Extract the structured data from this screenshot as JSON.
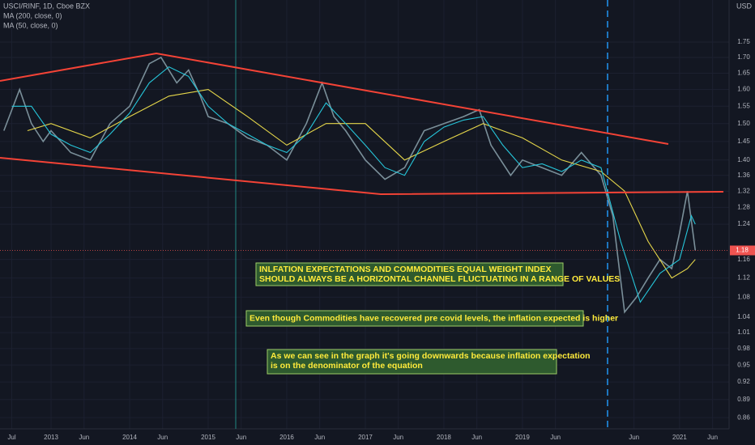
{
  "chart_data": {
    "type": "line",
    "title": "USCI/RINF, 1D, Cboe BZX",
    "y_unit": "USD",
    "log_scale": true,
    "grid": true,
    "xlim": [
      2012.35,
      2021.63
    ],
    "ylim": [
      0.842,
      1.895
    ],
    "xticks": [
      {
        "value": 2012.5,
        "label": "Jul"
      },
      {
        "value": 2013,
        "label": "2013"
      },
      {
        "value": 2013.42,
        "label": "Jun"
      },
      {
        "value": 2014,
        "label": "2014"
      },
      {
        "value": 2014.42,
        "label": "Jun"
      },
      {
        "value": 2015,
        "label": "2015"
      },
      {
        "value": 2015.42,
        "label": "Jun"
      },
      {
        "value": 2016,
        "label": "2016"
      },
      {
        "value": 2016.42,
        "label": "Jun"
      },
      {
        "value": 2017,
        "label": "2017"
      },
      {
        "value": 2017.42,
        "label": "Jun"
      },
      {
        "value": 2018,
        "label": "2018"
      },
      {
        "value": 2018.42,
        "label": "Jun"
      },
      {
        "value": 2019,
        "label": "2019"
      },
      {
        "value": 2019.42,
        "label": "Jun"
      },
      {
        "value": 2020.42,
        "label": "Jun"
      },
      {
        "value": 2021,
        "label": "2021"
      },
      {
        "value": 2021.42,
        "label": "Jun"
      }
    ],
    "yticks": [
      1.75,
      {
        "value": 1.7,
        "label": "1.70"
      },
      1.65,
      {
        "value": 1.6,
        "label": "1.60"
      },
      1.55,
      {
        "value": 1.5,
        "label": "1.50"
      },
      1.45,
      {
        "value": 1.4,
        "label": "1.40"
      },
      1.36,
      1.32,
      1.28,
      1.24,
      1.16,
      1.12,
      1.08,
      1.04,
      1.01,
      0.98,
      0.95,
      0.92,
      0.89,
      0.86
    ],
    "last_price": 1.18,
    "series": [
      {
        "name": "USCI/RINF, 1D, Cboe BZX",
        "color": "#7a8f99",
        "x": [
          2012.4,
          2012.6,
          2012.75,
          2012.9,
          2013.0,
          2013.25,
          2013.5,
          2013.75,
          2014.0,
          2014.25,
          2014.4,
          2014.6,
          2014.75,
          2014.9,
          2015.0,
          2015.25,
          2015.5,
          2015.75,
          2016.0,
          2016.25,
          2016.45,
          2016.6,
          2016.75,
          2017.0,
          2017.25,
          2017.5,
          2017.75,
          2018.0,
          2018.25,
          2018.45,
          2018.6,
          2018.85,
          2019.0,
          2019.25,
          2019.5,
          2019.75,
          2020.0,
          2020.15,
          2020.3,
          2020.45,
          2020.6,
          2020.75,
          2020.9,
          2021.0,
          2021.1,
          2021.2
        ],
        "values": [
          1.48,
          1.6,
          1.5,
          1.45,
          1.48,
          1.42,
          1.4,
          1.5,
          1.55,
          1.68,
          1.7,
          1.62,
          1.66,
          1.58,
          1.52,
          1.5,
          1.46,
          1.44,
          1.4,
          1.5,
          1.62,
          1.52,
          1.48,
          1.4,
          1.35,
          1.38,
          1.48,
          1.5,
          1.52,
          1.54,
          1.44,
          1.36,
          1.4,
          1.38,
          1.36,
          1.42,
          1.36,
          1.26,
          1.05,
          1.08,
          1.12,
          1.16,
          1.14,
          1.22,
          1.32,
          1.18
        ]
      },
      {
        "name": "MA (200, close, 0)",
        "color": "#e6d74a",
        "x": [
          2012.7,
          2013.0,
          2013.5,
          2014.0,
          2014.5,
          2015.0,
          2015.5,
          2016.0,
          2016.5,
          2017.0,
          2017.5,
          2018.0,
          2018.5,
          2019.0,
          2019.5,
          2020.0,
          2020.3,
          2020.6,
          2020.9,
          2021.1,
          2021.2
        ],
        "values": [
          1.48,
          1.5,
          1.46,
          1.52,
          1.58,
          1.6,
          1.52,
          1.44,
          1.5,
          1.5,
          1.4,
          1.45,
          1.5,
          1.46,
          1.4,
          1.37,
          1.32,
          1.2,
          1.12,
          1.14,
          1.16
        ]
      },
      {
        "name": "MA (50, close, 0)",
        "color": "#26c6da",
        "x": [
          2012.5,
          2012.75,
          2013.0,
          2013.25,
          2013.5,
          2013.75,
          2014.0,
          2014.25,
          2014.5,
          2014.75,
          2015.0,
          2015.25,
          2015.5,
          2015.75,
          2016.0,
          2016.25,
          2016.5,
          2016.75,
          2017.0,
          2017.25,
          2017.5,
          2017.75,
          2018.0,
          2018.25,
          2018.5,
          2018.75,
          2019.0,
          2019.25,
          2019.5,
          2019.75,
          2020.0,
          2020.25,
          2020.5,
          2020.75,
          2021.0,
          2021.15,
          2021.2
        ],
        "values": [
          1.55,
          1.55,
          1.47,
          1.44,
          1.42,
          1.47,
          1.53,
          1.62,
          1.67,
          1.64,
          1.55,
          1.5,
          1.47,
          1.44,
          1.42,
          1.47,
          1.56,
          1.5,
          1.44,
          1.38,
          1.36,
          1.45,
          1.49,
          1.51,
          1.52,
          1.44,
          1.38,
          1.39,
          1.37,
          1.4,
          1.38,
          1.2,
          1.07,
          1.13,
          1.16,
          1.26,
          1.24
        ]
      }
    ],
    "annotations": [
      [
        "INLFATION EXPECTATIONS AND COMMODITIES EQUAL WEIGHT INDEX",
        "SHOULD ALWAYS BE A HORIZONTAL CHANNEL FLUCTUATING IN A RANGE OF VALUES"
      ],
      [
        "Even though Commodities have recovered pre covid levels, the inflation expected is higher"
      ],
      [
        "As we can see in the graph it's going downwards because inflation expectation",
        "is on the denominator of the equation"
      ]
    ]
  }
}
